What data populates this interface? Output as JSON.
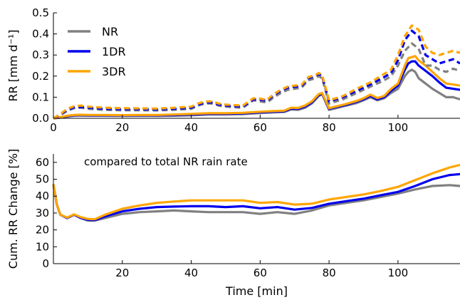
{
  "chart_data": [
    {
      "type": "line",
      "panel": "top",
      "title": "",
      "xlabel": "",
      "ylabel": "RR [mm d⁻¹]",
      "xlim": [
        0,
        118
      ],
      "ylim": [
        0,
        0.5
      ],
      "xticks": [
        0,
        20,
        40,
        60,
        80,
        100
      ],
      "xtick_labels": [
        "0",
        "20",
        "40",
        "60",
        "80",
        "100"
      ],
      "yticks": [
        0,
        0.1,
        0.2,
        0.3,
        0.4,
        0.5
      ],
      "ytick_labels": [
        "0.0",
        "0.1",
        "0.2",
        "0.3",
        "0.4",
        "0.5"
      ],
      "grid": false,
      "legend": {
        "position": "upper-left",
        "entries": [
          {
            "label": "NR",
            "color": "#808080"
          },
          {
            "label": "1DR",
            "color": "#0000ee"
          },
          {
            "label": "3DR",
            "color": "#ffa500"
          }
        ]
      },
      "series": [
        {
          "name": "NR",
          "style": "solid",
          "color": "#808080",
          "x": [
            0,
            2,
            4,
            6,
            8,
            10,
            15,
            20,
            25,
            30,
            35,
            40,
            45,
            50,
            55,
            60,
            64,
            67,
            69,
            71,
            73,
            75,
            77,
            78,
            80,
            85,
            88,
            90,
            92,
            94,
            96,
            98,
            100,
            102,
            103,
            104,
            105,
            106,
            108,
            110,
            112,
            114,
            116,
            118
          ],
          "y": [
            0,
            0.003,
            0.008,
            0.012,
            0.013,
            0.012,
            0.012,
            0.011,
            0.012,
            0.011,
            0.012,
            0.014,
            0.018,
            0.018,
            0.02,
            0.025,
            0.028,
            0.03,
            0.042,
            0.04,
            0.05,
            0.07,
            0.105,
            0.115,
            0.04,
            0.06,
            0.072,
            0.085,
            0.1,
            0.085,
            0.095,
            0.12,
            0.14,
            0.2,
            0.22,
            0.23,
            0.22,
            0.19,
            0.165,
            0.14,
            0.12,
            0.1,
            0.1,
            0.09
          ]
        },
        {
          "name": "1DR",
          "style": "solid",
          "color": "#0000ee",
          "x": [
            0,
            2,
            4,
            6,
            8,
            10,
            15,
            20,
            25,
            30,
            35,
            40,
            45,
            50,
            55,
            60,
            64,
            67,
            69,
            71,
            73,
            75,
            77,
            78,
            80,
            85,
            88,
            90,
            92,
            94,
            96,
            98,
            100,
            102,
            103,
            104,
            105,
            106,
            108,
            110,
            112,
            114,
            116,
            118
          ],
          "y": [
            0,
            0.004,
            0.01,
            0.014,
            0.015,
            0.014,
            0.014,
            0.013,
            0.014,
            0.014,
            0.015,
            0.018,
            0.021,
            0.021,
            0.023,
            0.028,
            0.031,
            0.033,
            0.046,
            0.045,
            0.055,
            0.075,
            0.11,
            0.117,
            0.045,
            0.064,
            0.078,
            0.09,
            0.106,
            0.09,
            0.1,
            0.13,
            0.155,
            0.23,
            0.26,
            0.27,
            0.27,
            0.25,
            0.225,
            0.2,
            0.17,
            0.145,
            0.14,
            0.135
          ]
        },
        {
          "name": "3DR",
          "style": "solid",
          "color": "#ffa500",
          "x": [
            0,
            2,
            4,
            6,
            8,
            10,
            15,
            20,
            25,
            30,
            35,
            40,
            45,
            50,
            55,
            60,
            64,
            67,
            69,
            71,
            73,
            75,
            77,
            78,
            80,
            85,
            88,
            90,
            92,
            94,
            96,
            98,
            100,
            102,
            103,
            104,
            105,
            106,
            108,
            110,
            112,
            114,
            116,
            118
          ],
          "y": [
            0,
            0.005,
            0.012,
            0.016,
            0.017,
            0.016,
            0.016,
            0.015,
            0.016,
            0.016,
            0.018,
            0.021,
            0.024,
            0.024,
            0.026,
            0.031,
            0.034,
            0.036,
            0.05,
            0.049,
            0.06,
            0.08,
            0.115,
            0.12,
            0.048,
            0.068,
            0.082,
            0.095,
            0.112,
            0.096,
            0.106,
            0.14,
            0.165,
            0.25,
            0.285,
            0.29,
            0.295,
            0.275,
            0.25,
            0.22,
            0.19,
            0.165,
            0.16,
            0.155
          ]
        },
        {
          "name": "NR (dashed)",
          "style": "dashed",
          "color": "#808080",
          "x": [
            0,
            2,
            4,
            6,
            8,
            10,
            15,
            20,
            25,
            30,
            35,
            40,
            42,
            44,
            46,
            48,
            50,
            55,
            58,
            60,
            62,
            64,
            66,
            68,
            70,
            72,
            74,
            76,
            77,
            78,
            80,
            84,
            88,
            92,
            96,
            98,
            100,
            102,
            104,
            106,
            108,
            110,
            112,
            114,
            116,
            118
          ],
          "y": [
            0,
            0.015,
            0.035,
            0.048,
            0.05,
            0.045,
            0.04,
            0.038,
            0.038,
            0.037,
            0.04,
            0.045,
            0.06,
            0.07,
            0.07,
            0.06,
            0.055,
            0.05,
            0.085,
            0.08,
            0.075,
            0.1,
            0.12,
            0.135,
            0.14,
            0.145,
            0.18,
            0.19,
            0.2,
            0.19,
            0.07,
            0.09,
            0.12,
            0.15,
            0.18,
            0.2,
            0.25,
            0.32,
            0.355,
            0.33,
            0.25,
            0.25,
            0.23,
            0.22,
            0.235,
            0.225
          ]
        },
        {
          "name": "1DR (dashed)",
          "style": "dashed",
          "color": "#0000ee",
          "x": [
            0,
            2,
            4,
            6,
            8,
            10,
            15,
            20,
            25,
            30,
            35,
            40,
            42,
            44,
            46,
            48,
            50,
            55,
            58,
            60,
            62,
            64,
            66,
            68,
            70,
            72,
            74,
            76,
            77,
            78,
            80,
            84,
            88,
            92,
            96,
            98,
            100,
            102,
            104,
            106,
            108,
            110,
            112,
            114,
            116,
            118
          ],
          "y": [
            0,
            0.018,
            0.04,
            0.052,
            0.054,
            0.05,
            0.045,
            0.043,
            0.043,
            0.042,
            0.045,
            0.05,
            0.065,
            0.075,
            0.075,
            0.065,
            0.06,
            0.055,
            0.09,
            0.088,
            0.083,
            0.11,
            0.13,
            0.145,
            0.15,
            0.152,
            0.19,
            0.2,
            0.21,
            0.2,
            0.08,
            0.1,
            0.13,
            0.16,
            0.195,
            0.215,
            0.275,
            0.37,
            0.415,
            0.39,
            0.3,
            0.28,
            0.26,
            0.27,
            0.28,
            0.26
          ]
        },
        {
          "name": "3DR (dashed)",
          "style": "dashed",
          "color": "#ffa500",
          "x": [
            0,
            2,
            4,
            6,
            8,
            10,
            15,
            20,
            25,
            30,
            35,
            40,
            42,
            44,
            46,
            48,
            50,
            55,
            58,
            60,
            62,
            64,
            66,
            68,
            70,
            72,
            74,
            76,
            77,
            78,
            80,
            84,
            88,
            92,
            96,
            98,
            100,
            102,
            104,
            106,
            108,
            110,
            112,
            114,
            116,
            118
          ],
          "y": [
            0,
            0.02,
            0.045,
            0.057,
            0.06,
            0.055,
            0.05,
            0.048,
            0.047,
            0.046,
            0.05,
            0.055,
            0.07,
            0.08,
            0.08,
            0.07,
            0.065,
            0.06,
            0.095,
            0.093,
            0.088,
            0.115,
            0.135,
            0.15,
            0.155,
            0.158,
            0.195,
            0.205,
            0.215,
            0.205,
            0.085,
            0.105,
            0.14,
            0.17,
            0.21,
            0.23,
            0.3,
            0.39,
            0.44,
            0.42,
            0.34,
            0.31,
            0.3,
            0.31,
            0.32,
            0.31
          ]
        }
      ]
    },
    {
      "type": "line",
      "panel": "bottom",
      "title": "",
      "annotation": "compared to total NR rain rate",
      "xlabel": "Time [min]",
      "ylabel": "Cum. RR Change [%]",
      "xlim": [
        0,
        118
      ],
      "ylim": [
        0,
        65
      ],
      "xticks": [
        20,
        40,
        60,
        80,
        100
      ],
      "xtick_labels": [
        "20",
        "40",
        "60",
        "80",
        "100"
      ],
      "yticks": [
        0,
        10,
        20,
        30,
        40,
        50,
        60
      ],
      "ytick_labels": [
        "0",
        "10",
        "20",
        "30",
        "40",
        "50",
        "60"
      ],
      "grid": false,
      "series": [
        {
          "name": "NR",
          "color": "#808080",
          "x": [
            0,
            1,
            2,
            4,
            6,
            8,
            10,
            12,
            15,
            20,
            25,
            30,
            35,
            40,
            45,
            50,
            55,
            60,
            65,
            70,
            75,
            80,
            85,
            90,
            95,
            100,
            105,
            110,
            115,
            118
          ],
          "y": [
            47,
            35,
            29,
            27,
            29,
            27,
            25.5,
            25.5,
            27,
            29.5,
            30.5,
            31,
            31.5,
            31,
            30.5,
            30.5,
            30.5,
            29.5,
            30.5,
            29.5,
            31.5,
            34.5,
            36,
            37.5,
            39.5,
            41.5,
            44,
            46,
            46.5,
            46
          ]
        },
        {
          "name": "1DR",
          "color": "#0000ee",
          "x": [
            0,
            1,
            2,
            4,
            6,
            8,
            10,
            12,
            15,
            20,
            25,
            30,
            35,
            40,
            45,
            50,
            55,
            60,
            65,
            70,
            75,
            80,
            85,
            90,
            95,
            100,
            105,
            110,
            115,
            118
          ],
          "y": [
            47,
            35,
            29,
            27,
            29,
            27,
            26,
            25.8,
            28,
            31,
            32.5,
            33.5,
            33.8,
            34,
            34,
            33.5,
            34,
            32.8,
            33.5,
            32,
            33,
            35.5,
            37,
            38.5,
            40.5,
            42.5,
            46,
            50,
            52.5,
            53
          ]
        },
        {
          "name": "3DR",
          "color": "#ffa500",
          "x": [
            0,
            1,
            2,
            4,
            6,
            8,
            10,
            12,
            15,
            20,
            25,
            30,
            35,
            40,
            45,
            50,
            55,
            60,
            65,
            70,
            75,
            80,
            85,
            90,
            95,
            100,
            105,
            110,
            115,
            118
          ],
          "y": [
            47,
            35,
            29,
            27.3,
            29.2,
            27.5,
            26.5,
            26.3,
            29,
            32.5,
            34.5,
            36,
            36.8,
            37.5,
            37.5,
            37.5,
            37.5,
            36,
            36.5,
            35,
            35.5,
            38,
            39.5,
            41,
            43,
            45.5,
            49.5,
            53.5,
            57,
            58.5
          ]
        }
      ]
    }
  ]
}
